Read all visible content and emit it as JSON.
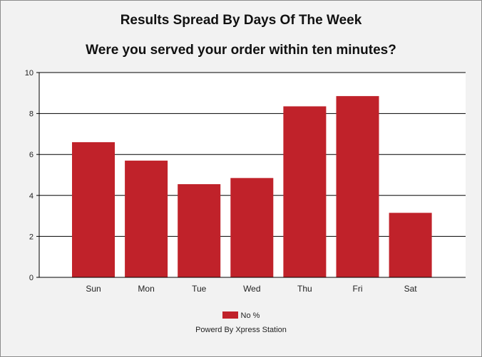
{
  "title": "Results Spread By Days Of The Week",
  "subtitle": "Were you served your order within ten minutes?",
  "footer": "Powerd By Xpress Station",
  "colors": {
    "bar": "#c0222a",
    "background": "#f2f2f2",
    "plot_background": "#ffffff",
    "grid": "#000000"
  },
  "chart_data": {
    "type": "bar",
    "categories": [
      "Sun",
      "Mon",
      "Tue",
      "Wed",
      "Thu",
      "Fri",
      "Sat"
    ],
    "series": [
      {
        "name": "No %",
        "values": [
          6.6,
          5.7,
          4.55,
          4.85,
          8.35,
          8.85,
          3.15
        ]
      }
    ],
    "ylim": [
      0,
      10
    ],
    "yticks": [
      0,
      2,
      4,
      6,
      8,
      10
    ],
    "grid": true,
    "legend_position": "bottom"
  }
}
